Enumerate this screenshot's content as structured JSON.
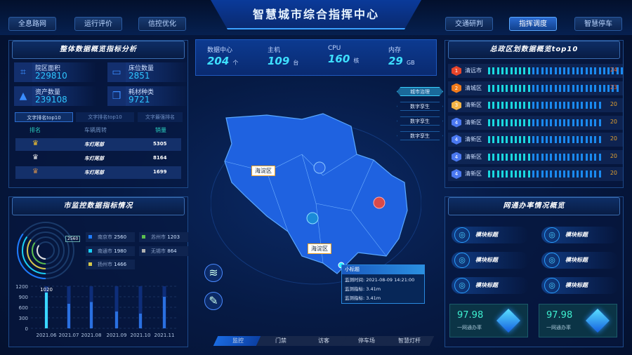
{
  "header": {
    "title": "智慧城市综合指挥中心",
    "nav_left": [
      {
        "label": "全息路网"
      },
      {
        "label": "运行评价"
      },
      {
        "label": "信控优化"
      }
    ],
    "nav_right": [
      {
        "label": "交通研判"
      },
      {
        "label": "指挥调度",
        "active": true
      },
      {
        "label": "智慧停车"
      }
    ]
  },
  "overview": {
    "title": "整体数据概览指标分析",
    "stats": [
      {
        "label": "院区面积",
        "value": "229810",
        "icon": "area-icon"
      },
      {
        "label": "床位数量",
        "value": "2851",
        "icon": "bed-icon"
      },
      {
        "label": "资产数量",
        "value": "239108",
        "icon": "asset-icon"
      },
      {
        "label": "耗材种类",
        "value": "9721",
        "icon": "cube-icon"
      }
    ],
    "tabs": [
      {
        "label": "文字排名top10",
        "active": true
      },
      {
        "label": "文字排名top10"
      },
      {
        "label": "文字最强排名"
      }
    ],
    "columns": [
      "排名",
      "车辆周转",
      "销量"
    ],
    "rows": [
      {
        "medal": "gold",
        "name": "车灯尾部",
        "value": "5305"
      },
      {
        "medal": "silver",
        "name": "车灯尾部",
        "value": "8164"
      },
      {
        "medal": "bronze",
        "name": "车灯尾部",
        "value": "1699"
      }
    ]
  },
  "monitor": {
    "title": "市监控数据指标情况",
    "ring_tag": "2560",
    "legend": [
      {
        "name": "南京市",
        "value": "2560",
        "color": "#1e7bff"
      },
      {
        "name": "苏州市",
        "value": "1203",
        "color": "#5bc04e"
      },
      {
        "name": "南通市",
        "value": "1980",
        "color": "#1ad0f5"
      },
      {
        "name": "无锡市",
        "value": "864",
        "color": "#b0b0b0"
      },
      {
        "name": "扬州市",
        "value": "1466",
        "color": "#d6c84a"
      }
    ]
  },
  "chart_data": {
    "type": "bar",
    "categories": [
      "2021.06",
      "2021.07",
      "2021.08",
      "2021.09",
      "2021.10",
      "2021.11"
    ],
    "values": [
      1020,
      700,
      750,
      480,
      420,
      900
    ],
    "ylim": [
      0,
      1200
    ],
    "yticks": [
      "0",
      "300",
      "600",
      "900",
      "1200"
    ],
    "annotation": "1020",
    "grid": true
  },
  "kpis": [
    {
      "label": "数据中心",
      "value": "204",
      "unit": "个"
    },
    {
      "label": "主机",
      "value": "109",
      "unit": "台"
    },
    {
      "label": "CPU",
      "value": "160",
      "unit": "核"
    },
    {
      "label": "内存",
      "value": "29",
      "unit": "GB"
    }
  ],
  "map": {
    "labels": [
      "海淀区",
      "海淀区"
    ],
    "layers": [
      {
        "label": "城市治理",
        "active": true
      },
      {
        "label": "数字孪生"
      },
      {
        "label": "数字孪生"
      },
      {
        "label": "数字孪生"
      }
    ],
    "popup": {
      "title": "小标题",
      "rows": [
        "监测时间: 2021-08-09 14:21:00",
        "监测指标: 3.41m",
        "监测指标: 3.41m"
      ]
    }
  },
  "bottom_tabs": [
    {
      "label": "监控",
      "active": true
    },
    {
      "label": "门禁"
    },
    {
      "label": "访客"
    },
    {
      "label": "停车场"
    },
    {
      "label": "智慧灯杆"
    }
  ],
  "ranking": {
    "title": "总政区划数据概览top10",
    "rows": [
      {
        "rank": "1",
        "name": "清远市",
        "value": "24",
        "color": "#e8452a"
      },
      {
        "rank": "2",
        "name": "清城区",
        "value": "23",
        "color": "#f07a1a"
      },
      {
        "rank": "3",
        "name": "清新区",
        "value": "20",
        "color": "#f2b447"
      },
      {
        "rank": "4",
        "name": "清新区",
        "value": "20",
        "color": "#4a78f0"
      },
      {
        "rank": "4",
        "name": "清新区",
        "value": "20",
        "color": "#4a78f0"
      },
      {
        "rank": "4",
        "name": "清新区",
        "value": "20",
        "color": "#4a78f0"
      },
      {
        "rank": "4",
        "name": "清新区",
        "value": "20",
        "color": "#4a78f0"
      }
    ]
  },
  "rate": {
    "title": "网通办率情况概览",
    "modules": [
      {
        "label": "模块标题"
      },
      {
        "label": "模块标题"
      },
      {
        "label": "模块标题"
      },
      {
        "label": "模块标题"
      },
      {
        "label": "模块标题"
      },
      {
        "label": "模块标题"
      }
    ],
    "cards": [
      {
        "value": "97.98",
        "label": "一网通办率"
      },
      {
        "value": "97.98",
        "label": "一网通办率"
      }
    ]
  }
}
